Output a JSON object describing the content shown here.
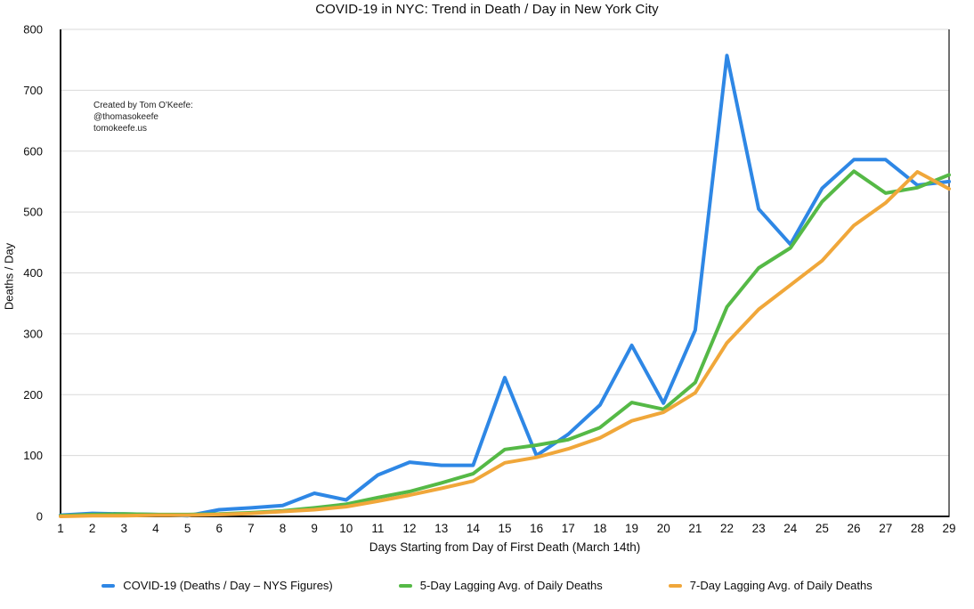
{
  "title": "COVID-19 in NYC: Trend in Death / Day in New York City",
  "annotation": {
    "line1": "Created by Tom O'Keefe:",
    "line2": "@thomasokeefe",
    "line3": "tomokeefe.us"
  },
  "axes": {
    "y_title": "Deaths / Day",
    "x_title": "Days Starting from Day of First Death (March 14th)"
  },
  "colors": {
    "series_blue": "#2E87E5",
    "series_green": "#55B946",
    "series_orange": "#F0A73A",
    "grid": "#D9D9D9",
    "axis": "#111111",
    "text": "#0d0d0d"
  },
  "chart_data": {
    "type": "line",
    "title": "COVID-19 in NYC: Trend in Death / Day in New York City",
    "xlabel": "Days Starting from Day of First Death (March 14th)",
    "ylabel": "Deaths / Day",
    "x": [
      1,
      2,
      3,
      4,
      5,
      6,
      7,
      8,
      9,
      10,
      11,
      12,
      13,
      14,
      15,
      16,
      17,
      18,
      19,
      20,
      21,
      22,
      23,
      24,
      25,
      26,
      27,
      28,
      29
    ],
    "ylim": [
      0,
      800
    ],
    "ytick_interval": 100,
    "grid": true,
    "legend_position": "bottom",
    "series": [
      {
        "name": "COVID-19 (Deaths / Day – NYS Figures)",
        "color": "#2E87E5",
        "values": [
          2,
          5,
          4,
          3,
          1,
          11,
          14,
          18,
          38,
          27,
          68,
          89,
          84,
          84,
          228,
          100,
          135,
          183,
          281,
          186,
          306,
          757,
          505,
          447,
          539,
          586,
          586,
          544,
          550
        ]
      },
      {
        "name": "5-Day Lagging Avg. of Daily Deaths",
        "color": "#55B946",
        "values": [
          1,
          3,
          4,
          3,
          3,
          4,
          6,
          9,
          14,
          20,
          31,
          41,
          55,
          70,
          110,
          117,
          126,
          146,
          187,
          176,
          220,
          344,
          408,
          441,
          517,
          567,
          531,
          540,
          561
        ]
      },
      {
        "name": "7-Day Lagging Avg. of Daily Deaths",
        "color": "#F0A73A",
        "values": [
          0,
          1,
          1,
          2,
          2,
          3,
          5,
          8,
          11,
          16,
          25,
          35,
          46,
          58,
          88,
          97,
          111,
          129,
          157,
          171,
          203,
          285,
          340,
          380,
          420,
          478,
          515,
          566,
          538
        ]
      }
    ]
  }
}
